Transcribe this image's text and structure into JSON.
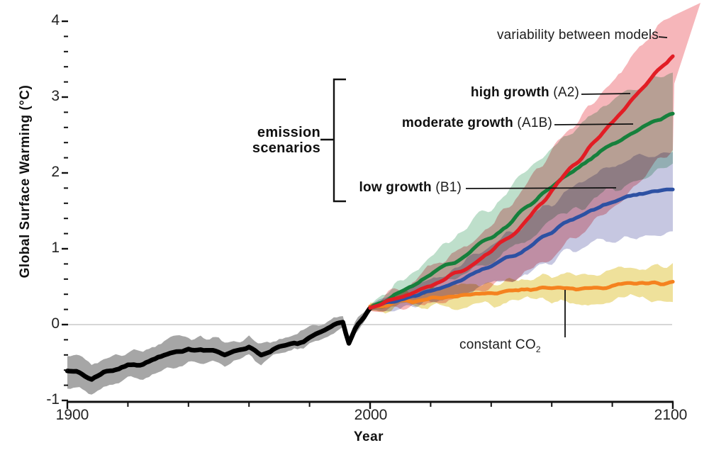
{
  "chart_data": {
    "type": "line",
    "title": "",
    "xlabel": "Year",
    "ylabel": "Global Surface Warming (°C)",
    "xlim": [
      1900,
      2100
    ],
    "ylim": [
      -1,
      4.2
    ],
    "grid": "horizontal zero-line only",
    "legend_position": "inline annotations with leader lines",
    "x_tick_labels": [
      "1900",
      "2000",
      "2100"
    ],
    "x_tick_years": [
      1900,
      2000,
      2100
    ],
    "x_minor_tick_years": [
      1920,
      1940,
      1960,
      1980,
      2020,
      2040,
      2060,
      2080
    ],
    "y_tick_labels": [
      "4",
      "3",
      "2",
      "1",
      "0",
      "-1"
    ],
    "y_tick_values": [
      4,
      3,
      2,
      1,
      0,
      -1
    ],
    "y_minor_step": 0.2,
    "annotations": {
      "variability": "variability between models",
      "high": {
        "bold": "high growth",
        "rest": " (A2)"
      },
      "moderate": {
        "bold": "moderate growth",
        "rest": " (A1B)"
      },
      "low": {
        "bold": "low growth",
        "rest": " (B1)"
      },
      "emission": {
        "line1": "emission",
        "line2": "scenarios"
      },
      "constant_co2": {
        "text": "constant CO",
        "sub": "2"
      }
    },
    "series": [
      {
        "id": "observed",
        "label": "",
        "line_color": "#000000",
        "band_color": "#a6a6a6",
        "band_blend": "normal",
        "x": [
          1900,
          1904,
          1908,
          1912,
          1916,
          1920,
          1925,
          1930,
          1935,
          1940,
          1944,
          1948,
          1952,
          1956,
          1960,
          1964,
          1968,
          1972,
          1976,
          1980,
          1984,
          1988,
          1991,
          1993,
          1996,
          1998,
          2000
        ],
        "y": [
          -0.58,
          -0.64,
          -0.72,
          -0.62,
          -0.58,
          -0.54,
          -0.5,
          -0.44,
          -0.4,
          -0.3,
          -0.32,
          -0.36,
          -0.38,
          -0.33,
          -0.29,
          -0.43,
          -0.34,
          -0.31,
          -0.27,
          -0.17,
          -0.12,
          -0.02,
          0.05,
          -0.22,
          0.0,
          0.1,
          0.22
        ],
        "band_upper": [
          0.22,
          0.22,
          0.21,
          0.21,
          0.2,
          0.2,
          0.19,
          0.18,
          0.18,
          0.17,
          0.17,
          0.16,
          0.16,
          0.15,
          0.14,
          0.13,
          0.13,
          0.12,
          0.11,
          0.1,
          0.1,
          0.09,
          0.08,
          0.08,
          0.07,
          0.06,
          0.05
        ],
        "band_lower": [
          0.22,
          0.22,
          0.21,
          0.21,
          0.2,
          0.2,
          0.19,
          0.18,
          0.18,
          0.17,
          0.17,
          0.16,
          0.16,
          0.15,
          0.14,
          0.13,
          0.13,
          0.12,
          0.11,
          0.1,
          0.1,
          0.09,
          0.08,
          0.08,
          0.07,
          0.06,
          0.05
        ]
      },
      {
        "id": "constant-co2",
        "label": "constant CO2",
        "line_color": "#f5821f",
        "band_color": "#efe19b",
        "band_blend": "multiply",
        "x": [
          2000,
          2010,
          2020,
          2030,
          2040,
          2050,
          2060,
          2070,
          2080,
          2090,
          2100
        ],
        "y": [
          0.24,
          0.3,
          0.34,
          0.38,
          0.42,
          0.45,
          0.48,
          0.5,
          0.52,
          0.54,
          0.56
        ],
        "band_upper": [
          0.05,
          0.09,
          0.12,
          0.14,
          0.15,
          0.16,
          0.17,
          0.18,
          0.19,
          0.2,
          0.22
        ],
        "band_lower": [
          0.05,
          0.09,
          0.12,
          0.14,
          0.15,
          0.16,
          0.17,
          0.18,
          0.19,
          0.2,
          0.22
        ]
      },
      {
        "id": "low-growth-b1",
        "label": "low growth (B1)",
        "line_color": "#2d51a3",
        "band_color": "#c6c7e1",
        "band_blend": "multiply",
        "x": [
          2000,
          2010,
          2020,
          2030,
          2040,
          2050,
          2060,
          2070,
          2080,
          2090,
          2100
        ],
        "y": [
          0.22,
          0.32,
          0.45,
          0.6,
          0.78,
          0.98,
          1.22,
          1.45,
          1.62,
          1.73,
          1.8
        ],
        "band_upper": [
          0.04,
          0.11,
          0.17,
          0.23,
          0.29,
          0.34,
          0.39,
          0.43,
          0.46,
          0.47,
          0.48
        ],
        "band_lower": [
          0.04,
          0.1,
          0.15,
          0.21,
          0.27,
          0.33,
          0.39,
          0.45,
          0.51,
          0.56,
          0.6
        ]
      },
      {
        "id": "moderate-growth-a1b",
        "label": "moderate growth (A1B)",
        "line_color": "#16803c",
        "band_color": "#bedfcb",
        "band_blend": "multiply",
        "x": [
          2000,
          2010,
          2020,
          2030,
          2040,
          2050,
          2060,
          2070,
          2080,
          2090,
          2100
        ],
        "y": [
          0.22,
          0.42,
          0.64,
          0.88,
          1.14,
          1.48,
          1.8,
          2.1,
          2.38,
          2.6,
          2.8
        ],
        "band_upper": [
          0.04,
          0.15,
          0.24,
          0.32,
          0.4,
          0.46,
          0.51,
          0.55,
          0.58,
          0.6,
          0.6
        ],
        "band_lower": [
          0.04,
          0.12,
          0.19,
          0.26,
          0.33,
          0.4,
          0.48,
          0.56,
          0.62,
          0.67,
          0.7
        ]
      },
      {
        "id": "high-growth-a2",
        "label": "high growth (A2)",
        "line_color": "#e21d25",
        "band_color": "#f6b6ba",
        "band_blend": "multiply",
        "x": [
          2000,
          2010,
          2020,
          2030,
          2040,
          2050,
          2060,
          2070,
          2080,
          2090,
          2100
        ],
        "y": [
          0.22,
          0.36,
          0.52,
          0.7,
          0.95,
          1.3,
          1.78,
          2.22,
          2.68,
          3.12,
          3.55
        ],
        "band_upper": [
          0.04,
          0.15,
          0.25,
          0.34,
          0.42,
          0.48,
          0.53,
          0.56,
          0.57,
          0.56,
          0.55
        ],
        "band_lower": [
          0.04,
          0.14,
          0.24,
          0.36,
          0.5,
          0.66,
          0.84,
          1.0,
          1.12,
          1.2,
          1.25
        ]
      }
    ],
    "colors": {
      "axis": "#111111",
      "zero_line": "#c9c9c9",
      "leader_line": "#111111"
    }
  }
}
